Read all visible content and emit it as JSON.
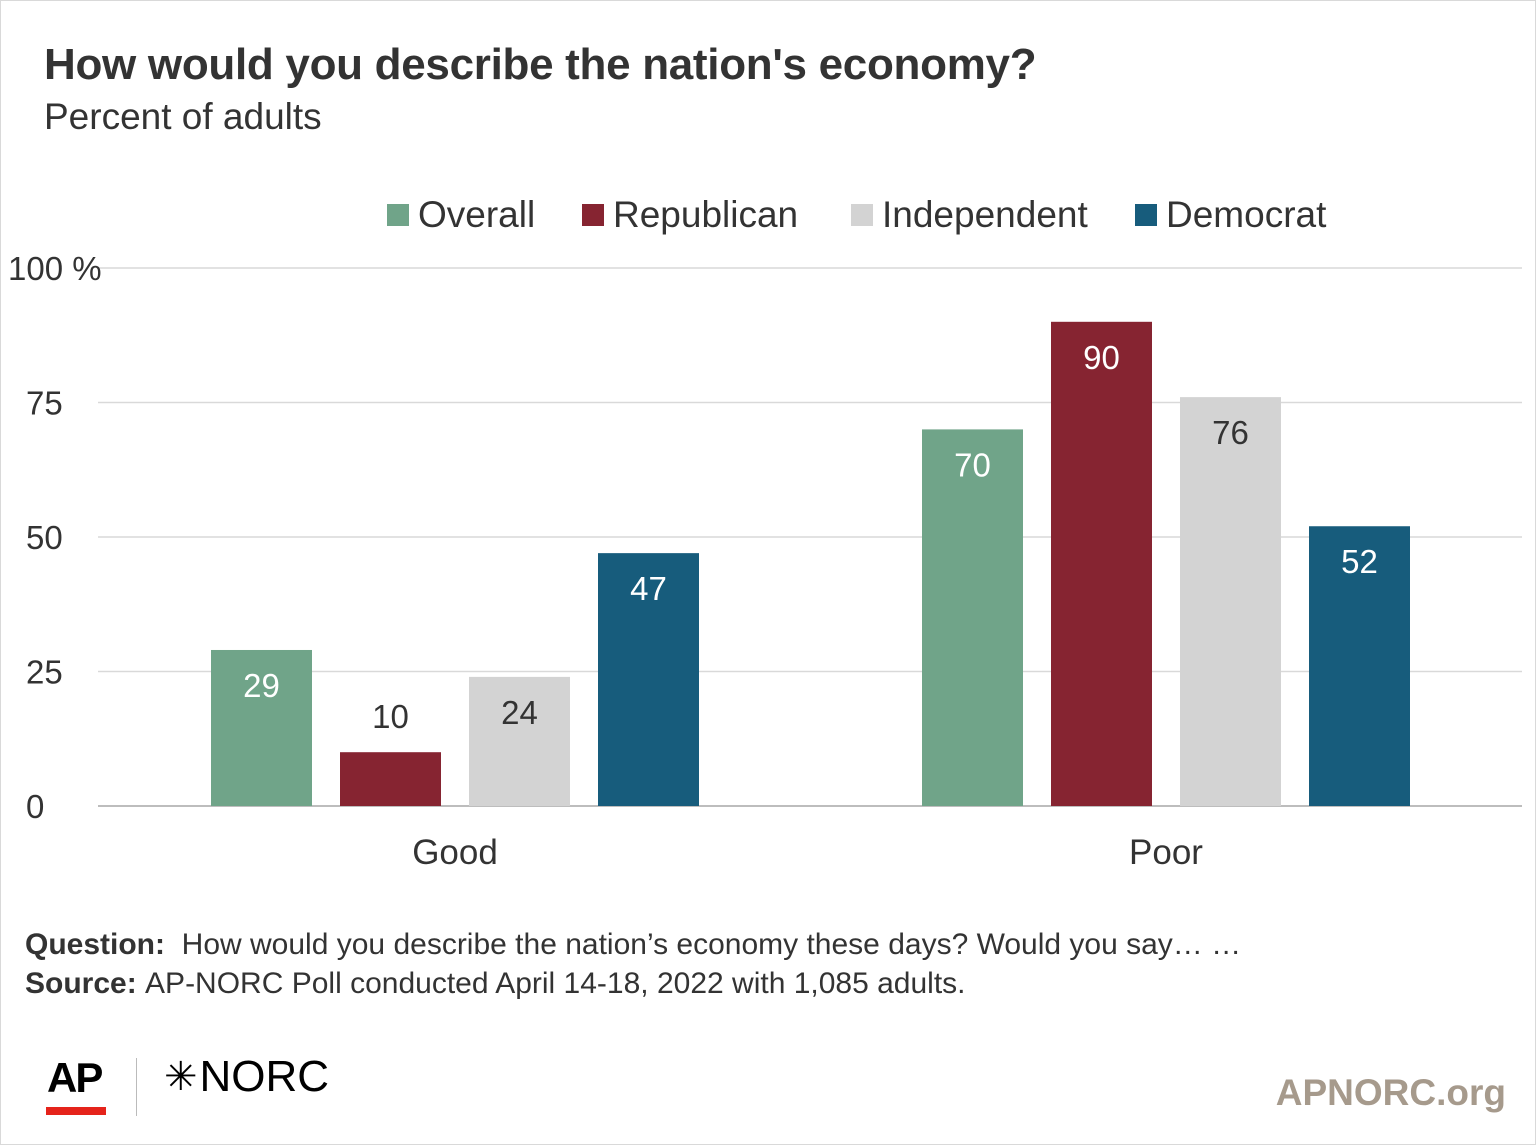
{
  "header": {
    "title": "How would you describe the nation's economy?",
    "subtitle": "Percent of adults"
  },
  "footer": {
    "question_label": "Question:",
    "question_text": "How would you describe the nation’s economy these days? Would you say… …",
    "source_label": "Source:",
    "source_text": "AP-NORC Poll conducted April 14-18, 2022 with 1,085 adults.",
    "ap_logo": "AP",
    "norc_logo": "NORC",
    "site": "APNORC.org"
  },
  "colors": {
    "overall": "#70a489",
    "republican": "#862431",
    "independent": "#d3d3d3",
    "democrat": "#175c7c",
    "gridline": "#d9d9d9",
    "text": "#333333"
  },
  "chart_data": {
    "type": "bar",
    "title": "How would you describe the nation's economy?",
    "subtitle": "Percent of adults",
    "categories": [
      "Good",
      "Poor"
    ],
    "series": [
      {
        "name": "Overall",
        "color": "#70a489",
        "label_color": "#ffffff",
        "values": [
          29,
          70
        ]
      },
      {
        "name": "Republican",
        "color": "#862431",
        "label_color": "#ffffff",
        "values": [
          10,
          90
        ]
      },
      {
        "name": "Independent",
        "color": "#d3d3d3",
        "label_color": "#333333",
        "values": [
          24,
          76
        ]
      },
      {
        "name": "Democrat",
        "color": "#175c7c",
        "label_color": "#ffffff",
        "values": [
          47,
          52
        ]
      }
    ],
    "y_ticks": [
      {
        "value": 0,
        "label": "0"
      },
      {
        "value": 25,
        "label": "25"
      },
      {
        "value": 50,
        "label": "50"
      },
      {
        "value": 75,
        "label": "75"
      },
      {
        "value": 100,
        "label": "100 %"
      }
    ],
    "ylim": [
      0,
      100
    ],
    "grid": true,
    "legend_position": "top"
  }
}
